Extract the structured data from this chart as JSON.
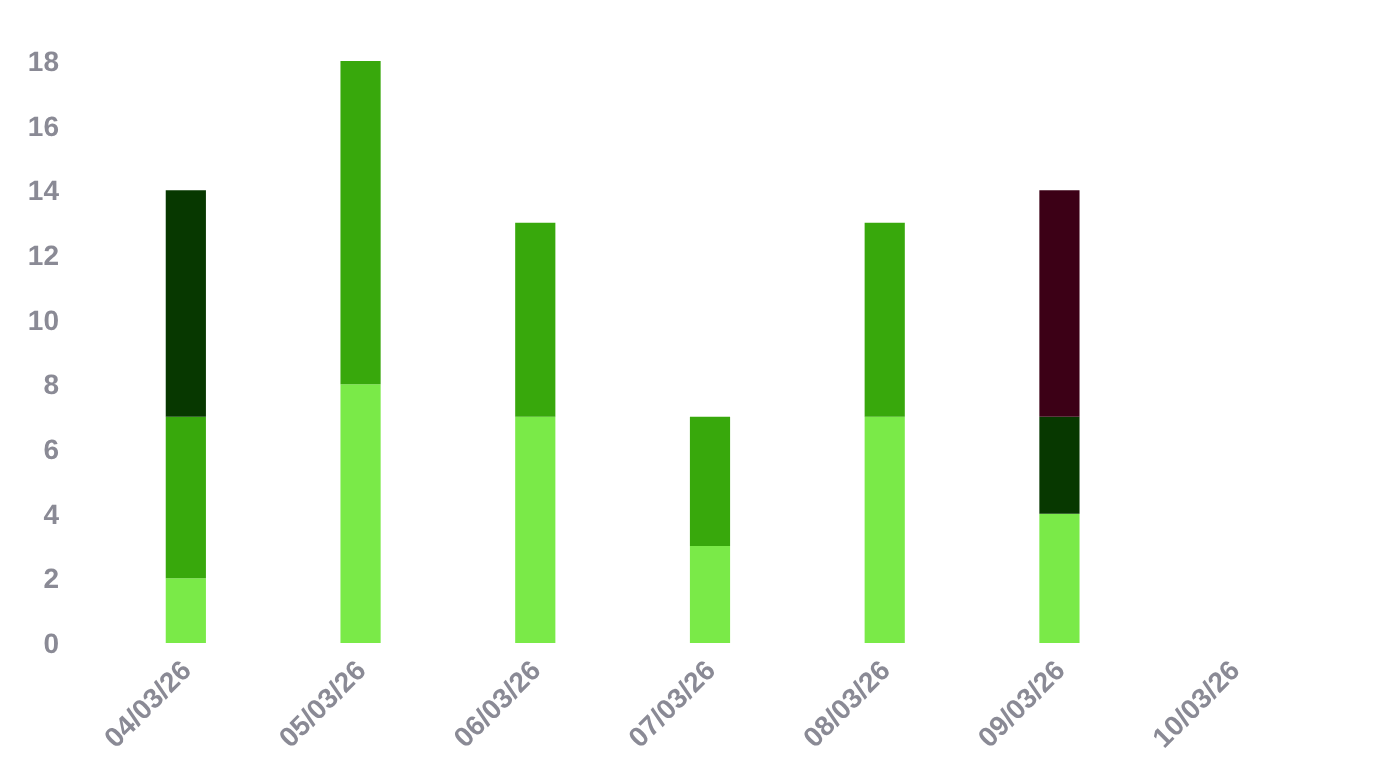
{
  "chart_data": {
    "type": "bar",
    "stacked": true,
    "categories": [
      "04/03/26",
      "05/03/26",
      "06/03/26",
      "07/03/26",
      "08/03/26",
      "09/03/26",
      "10/03/26"
    ],
    "series": [
      {
        "color": "#7aea48",
        "values": [
          2,
          8,
          7,
          3,
          7,
          4,
          null
        ]
      },
      {
        "color": "#38a80c",
        "values": [
          5,
          10,
          6,
          4,
          6,
          null,
          null
        ]
      },
      {
        "color": "#073800",
        "values": [
          7,
          null,
          null,
          null,
          null,
          3,
          null
        ]
      },
      {
        "color": "#3c0016",
        "values": [
          null,
          null,
          null,
          null,
          null,
          7,
          null
        ]
      }
    ],
    "ylim": [
      0,
      18
    ],
    "yticks": [
      0,
      2,
      4,
      6,
      8,
      10,
      12,
      14,
      16,
      18
    ],
    "grid": false
  }
}
